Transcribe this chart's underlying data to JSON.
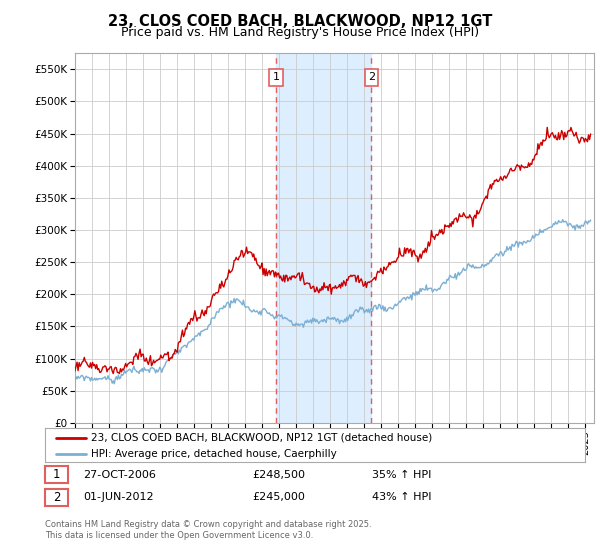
{
  "title": "23, CLOS COED BACH, BLACKWOOD, NP12 1GT",
  "subtitle": "Price paid vs. HM Land Registry's House Price Index (HPI)",
  "ylim": [
    0,
    575000
  ],
  "yticks": [
    0,
    50000,
    100000,
    150000,
    200000,
    250000,
    300000,
    350000,
    400000,
    450000,
    500000,
    550000
  ],
  "ytick_labels": [
    "£0",
    "£50K",
    "£100K",
    "£150K",
    "£200K",
    "£250K",
    "£300K",
    "£350K",
    "£400K",
    "£450K",
    "£500K",
    "£550K"
  ],
  "xlim_start": 1995.0,
  "xlim_end": 2025.5,
  "shaded_region_x1": 2006.82,
  "shaded_region_x2": 2012.42,
  "marker1_x": 2006.82,
  "marker1_label": "1",
  "marker2_x": 2012.42,
  "marker2_label": "2",
  "red_line_color": "#cc0000",
  "blue_line_color": "#7BAFD4",
  "shaded_color": "#ddeeff",
  "vline_color": "#e06060",
  "grid_color": "#cccccc",
  "background_color": "#ffffff",
  "legend_label_red": "23, CLOS COED BACH, BLACKWOOD, NP12 1GT (detached house)",
  "legend_label_blue": "HPI: Average price, detached house, Caerphilly",
  "table_row1": [
    "1",
    "27-OCT-2006",
    "£248,500",
    "35% ↑ HPI"
  ],
  "table_row2": [
    "2",
    "01-JUN-2012",
    "£245,000",
    "43% ↑ HPI"
  ],
  "footer": "Contains HM Land Registry data © Crown copyright and database right 2025.\nThis data is licensed under the Open Government Licence v3.0.",
  "title_fontsize": 10.5,
  "subtitle_fontsize": 9
}
